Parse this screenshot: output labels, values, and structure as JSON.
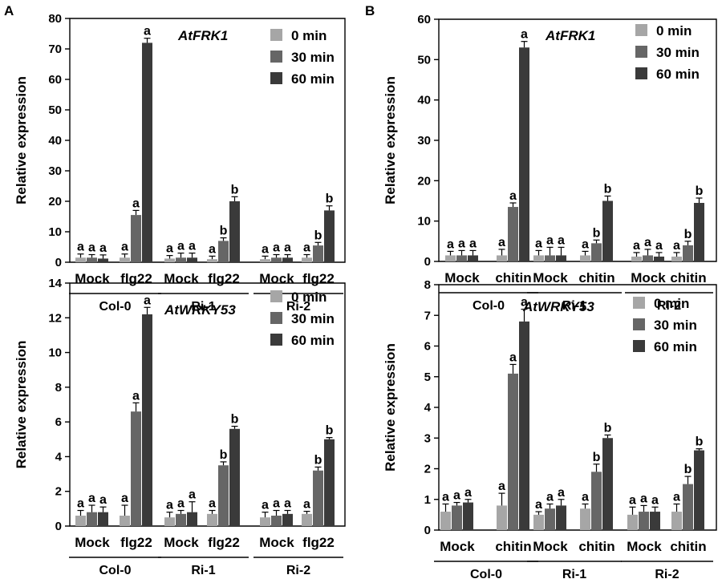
{
  "panel_labels": [
    "A",
    "B"
  ],
  "colors": {
    "0 min": "#a6a6a6",
    "30 min": "#666666",
    "60 min": "#3a3a3a"
  },
  "chart_data": [
    {
      "type": "bar",
      "panel": "A",
      "title": "AtFRK1",
      "ylabel": "Relative expression",
      "ylim": [
        0,
        80
      ],
      "yticks": [
        0,
        10,
        20,
        30,
        40,
        50,
        60,
        70,
        80
      ],
      "legend": [
        "0 min",
        "30 min",
        "60 min"
      ],
      "genotypes": [
        "Col-0",
        "Ri-1",
        "Ri-2"
      ],
      "treatments": [
        "Mock",
        "flg22"
      ],
      "groups": [
        {
          "genotype": "Col-0",
          "treatment": "Mock",
          "values": [
            1.5,
            1.5,
            1.2
          ],
          "errors": [
            1.2,
            1.0,
            1.2
          ],
          "labels": [
            "a",
            "a",
            "a"
          ]
        },
        {
          "genotype": "Col-0",
          "treatment": "flg22",
          "values": [
            1.5,
            15.5,
            72.0
          ],
          "errors": [
            1.2,
            1.5,
            1.5
          ],
          "labels": [
            "a",
            "a",
            "a"
          ]
        },
        {
          "genotype": "Ri-1",
          "treatment": "Mock",
          "values": [
            1.2,
            1.5,
            1.5
          ],
          "errors": [
            1.0,
            1.5,
            1.5
          ],
          "labels": [
            "a",
            "a",
            "a"
          ]
        },
        {
          "genotype": "Ri-1",
          "treatment": "flg22",
          "values": [
            1.0,
            7.0,
            20.0
          ],
          "errors": [
            1.0,
            1.0,
            1.5
          ],
          "labels": [
            "a",
            "b",
            "b"
          ]
        },
        {
          "genotype": "Ri-2",
          "treatment": "Mock",
          "values": [
            1.0,
            1.5,
            1.5
          ],
          "errors": [
            1.0,
            1.0,
            1.0
          ],
          "labels": [
            "a",
            "a",
            "a"
          ]
        },
        {
          "genotype": "Ri-2",
          "treatment": "flg22",
          "values": [
            1.5,
            5.5,
            17.0
          ],
          "errors": [
            1.0,
            1.0,
            1.5
          ],
          "labels": [
            "a",
            "b",
            "b"
          ]
        }
      ]
    },
    {
      "type": "bar",
      "panel": "B",
      "title": "AtFRK1",
      "ylabel": "Relative expression",
      "ylim": [
        0,
        60
      ],
      "yticks": [
        0,
        10,
        20,
        30,
        40,
        50,
        60
      ],
      "legend": [
        "0 min",
        "30 min",
        "60 min"
      ],
      "genotypes": [
        "Col-0",
        "Ri-1",
        "Ri-2"
      ],
      "treatments": [
        "Mock",
        "chitin"
      ],
      "groups": [
        {
          "genotype": "Col-0",
          "treatment": "Mock",
          "values": [
            1.5,
            1.5,
            1.5
          ],
          "errors": [
            1.0,
            1.2,
            1.2
          ],
          "labels": [
            "a",
            "a",
            "a"
          ]
        },
        {
          "genotype": "Col-0",
          "treatment": "chitin",
          "values": [
            1.5,
            13.5,
            53.0
          ],
          "errors": [
            1.5,
            1.0,
            1.5
          ],
          "labels": [
            "a",
            "a",
            "a"
          ]
        },
        {
          "genotype": "Ri-1",
          "treatment": "Mock",
          "values": [
            1.5,
            1.5,
            1.5
          ],
          "errors": [
            1.2,
            2.0,
            2.0
          ],
          "labels": [
            "a",
            "a",
            "a"
          ]
        },
        {
          "genotype": "Ri-1",
          "treatment": "chitin",
          "values": [
            1.5,
            4.5,
            15.0
          ],
          "errors": [
            1.0,
            0.8,
            1.2
          ],
          "labels": [
            "a",
            "b",
            "b"
          ]
        },
        {
          "genotype": "Ri-2",
          "treatment": "Mock",
          "values": [
            1.2,
            1.5,
            1.2
          ],
          "errors": [
            1.0,
            1.5,
            1.0
          ],
          "labels": [
            "a",
            "a",
            "a"
          ]
        },
        {
          "genotype": "Ri-2",
          "treatment": "chitin",
          "values": [
            1.2,
            4.0,
            14.5
          ],
          "errors": [
            1.0,
            1.0,
            1.2
          ],
          "labels": [
            "a",
            "b",
            "b"
          ]
        }
      ]
    },
    {
      "type": "bar",
      "panel": "A",
      "title": "AtWRKY53",
      "ylabel": "Relative expression",
      "ylim": [
        0,
        14
      ],
      "yticks": [
        0,
        2,
        4,
        6,
        8,
        10,
        12,
        14
      ],
      "legend": [
        "0 min",
        "30 min",
        "60 min"
      ],
      "genotypes": [
        "Col-0",
        "Ri-1",
        "Ri-2"
      ],
      "treatments": [
        "Mock",
        "flg22"
      ],
      "groups": [
        {
          "genotype": "Col-0",
          "treatment": "Mock",
          "values": [
            0.6,
            0.8,
            0.8
          ],
          "errors": [
            0.3,
            0.4,
            0.3
          ],
          "labels": [
            "a",
            "a",
            "a"
          ]
        },
        {
          "genotype": "Col-0",
          "treatment": "flg22",
          "values": [
            0.6,
            6.6,
            12.2
          ],
          "errors": [
            0.6,
            0.5,
            0.4
          ],
          "labels": [
            "a",
            "a",
            "a"
          ]
        },
        {
          "genotype": "Ri-1",
          "treatment": "Mock",
          "values": [
            0.5,
            0.7,
            0.8
          ],
          "errors": [
            0.3,
            0.2,
            0.6
          ],
          "labels": [
            "a",
            "a",
            "a"
          ]
        },
        {
          "genotype": "Ri-1",
          "treatment": "flg22",
          "values": [
            0.7,
            3.5,
            5.6
          ],
          "errors": [
            0.2,
            0.2,
            0.15
          ],
          "labels": [
            "a",
            "b",
            "b"
          ]
        },
        {
          "genotype": "Ri-2",
          "treatment": "Mock",
          "values": [
            0.5,
            0.6,
            0.7
          ],
          "errors": [
            0.3,
            0.3,
            0.2
          ],
          "labels": [
            "a",
            "a",
            "a"
          ]
        },
        {
          "genotype": "Ri-2",
          "treatment": "flg22",
          "values": [
            0.7,
            3.2,
            5.0
          ],
          "errors": [
            0.15,
            0.2,
            0.1
          ],
          "labels": [
            "a",
            "b",
            "b"
          ]
        }
      ]
    },
    {
      "type": "bar",
      "panel": "B",
      "title": "AtWRKY53",
      "ylabel": "Relative expression",
      "ylim": [
        0,
        8
      ],
      "yticks": [
        0,
        1,
        2,
        3,
        4,
        5,
        6,
        7,
        8
      ],
      "legend": [
        "0 min",
        "30 min",
        "60 min"
      ],
      "genotypes": [
        "Col-0",
        "Ri-1",
        "Ri-2"
      ],
      "treatments": [
        "Mock",
        "chitin"
      ],
      "groups": [
        {
          "genotype": "Col-0",
          "treatment": "Mock",
          "values": [
            0.6,
            0.8,
            0.9
          ],
          "errors": [
            0.25,
            0.1,
            0.1
          ],
          "labels": [
            "a",
            "a",
            "a"
          ]
        },
        {
          "genotype": "Col-0",
          "treatment": "chitin",
          "values": [
            0.8,
            5.1,
            6.8
          ],
          "errors": [
            0.4,
            0.3,
            0.4
          ],
          "labels": [
            "a",
            "a",
            "a"
          ]
        },
        {
          "genotype": "Ri-1",
          "treatment": "Mock",
          "values": [
            0.5,
            0.7,
            0.8
          ],
          "errors": [
            0.1,
            0.15,
            0.2
          ],
          "labels": [
            "a",
            "a",
            "a"
          ]
        },
        {
          "genotype": "Ri-1",
          "treatment": "chitin",
          "values": [
            0.7,
            1.9,
            3.0
          ],
          "errors": [
            0.15,
            0.25,
            0.1
          ],
          "labels": [
            "a",
            "b",
            "b"
          ]
        },
        {
          "genotype": "Ri-2",
          "treatment": "Mock",
          "values": [
            0.5,
            0.6,
            0.6
          ],
          "errors": [
            0.25,
            0.2,
            0.15
          ],
          "labels": [
            "a",
            "a",
            "a"
          ]
        },
        {
          "genotype": "Ri-2",
          "treatment": "chitin",
          "values": [
            0.6,
            1.5,
            2.6
          ],
          "errors": [
            0.25,
            0.25,
            0.05
          ],
          "labels": [
            "a",
            "b",
            "b"
          ]
        }
      ]
    }
  ]
}
